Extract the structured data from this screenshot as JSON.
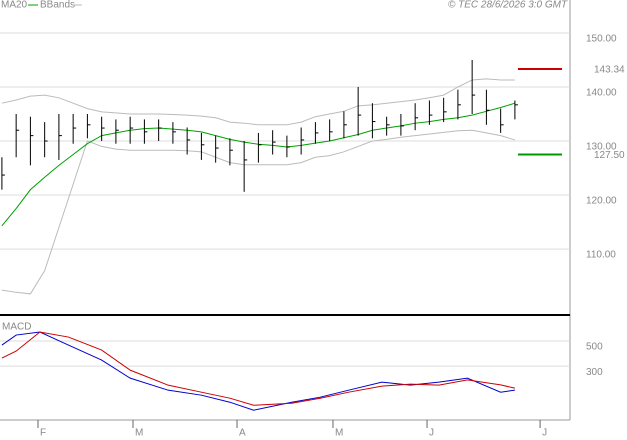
{
  "source": "© TEC 28/6/2026 3:0 GMT",
  "chart_data": [
    {
      "type": "ohlc",
      "x": [
        0,
        3,
        6,
        9,
        12,
        15,
        18,
        21,
        24,
        27,
        30,
        33,
        36,
        39,
        42,
        45,
        48,
        51,
        54,
        57,
        60,
        63,
        66,
        69,
        72,
        75,
        78,
        81,
        84,
        87,
        90,
        93,
        96,
        99,
        102,
        105,
        108
      ],
      "high": [
        127,
        135,
        134.5,
        133.5,
        135,
        135,
        135,
        134.5,
        134,
        134.5,
        134,
        134,
        133.5,
        132.5,
        131.5,
        131,
        130.5,
        130,
        131.5,
        132,
        131,
        132.5,
        133.5,
        134,
        135.5,
        140,
        137,
        134.5,
        135,
        137,
        137.5,
        138,
        139.5,
        145,
        139.5,
        136,
        137.5
      ],
      "low": [
        121,
        127,
        125.5,
        127,
        126.5,
        129.5,
        130.5,
        130,
        129.5,
        129.5,
        129.5,
        130,
        129.5,
        127.5,
        126.5,
        126,
        125.5,
        120.6,
        126,
        127.5,
        127,
        127.5,
        129.5,
        130,
        130.5,
        131,
        130.5,
        131,
        131,
        132,
        133,
        133.5,
        134,
        135,
        133,
        131.5,
        134
      ],
      "close": [
        123.7,
        132,
        131,
        130,
        131,
        132.4,
        133,
        132.4,
        132,
        132.4,
        131.7,
        132.4,
        131.7,
        130.2,
        129.3,
        128.7,
        128.3,
        126.5,
        129.3,
        129.8,
        128.9,
        130.2,
        131.5,
        131.7,
        133,
        134.8,
        133.6,
        133,
        132.8,
        134.3,
        134.8,
        135.4,
        136.7,
        138.5,
        135.7,
        133,
        136.7
      ],
      "bar_color": "#000000",
      "series": [
        {
          "name": "MA20",
          "color": "#00a000",
          "values": [
            114.3,
            117.5,
            121,
            123.3,
            125.5,
            127.5,
            129.5,
            131,
            131.5,
            132,
            132.3,
            132.4,
            132.2,
            132,
            131.7,
            131,
            130.3,
            129.8,
            129.4,
            129.2,
            128.9,
            129.2,
            129.6,
            130,
            130.6,
            131.2,
            132,
            132.4,
            132.8,
            133.3,
            133.6,
            134,
            134.3,
            134.8,
            135.5,
            136.2,
            137
          ]
        }
      ],
      "bands": {
        "name": "BBands",
        "color": "#bbbbbb",
        "upper": [
          137,
          137.6,
          138.3,
          138.5,
          138,
          137,
          136,
          135.4,
          135.2,
          135,
          135,
          135,
          134.9,
          134.8,
          134.6,
          134.3,
          133.5,
          133.3,
          133,
          133,
          133,
          133.5,
          134.5,
          135,
          135.5,
          136.5,
          136.7,
          137,
          137.3,
          137.6,
          138,
          138.5,
          140,
          141.3,
          141.5,
          141.3,
          141.3
        ],
        "lower": [
          102.4,
          102,
          101.7,
          106,
          114,
          122,
          130,
          129,
          128.5,
          128.3,
          128.3,
          128.3,
          128.3,
          128.2,
          128,
          127,
          126,
          125.6,
          125.6,
          125.6,
          125.6,
          126,
          127,
          127.3,
          128,
          129,
          130,
          130.3,
          130.7,
          131,
          131.3,
          131.6,
          131.9,
          132,
          131.5,
          131,
          130.2
        ]
      },
      "levels": {
        "values": [
          143.34,
          127.5
        ],
        "value_labels": [
          "143.34",
          "127.50"
        ],
        "colors": [
          "#cc0000",
          "#009900"
        ]
      },
      "xlim": [
        -0.4,
        119.6
      ],
      "ylim": [
        97.8,
        156.1
      ],
      "yticks": [
        {
          "value": 110,
          "label": "110.00"
        },
        {
          "value": 120,
          "label": "120.00"
        },
        {
          "value": 130,
          "label": "130.00"
        },
        {
          "value": 140,
          "label": "140.00"
        },
        {
          "value": 150,
          "label": "150.00"
        }
      ],
      "grid": true
    },
    {
      "type": "line",
      "title": "MACD",
      "x": [
        0,
        3,
        8,
        14,
        21,
        27,
        35,
        42,
        48,
        53,
        61,
        67,
        73,
        80,
        86,
        92,
        98,
        105,
        108
      ],
      "series": [
        {
          "color": "#0000cc",
          "values": [
            468,
            548,
            572,
            468,
            348,
            204,
            108,
            68,
            12,
            -52,
            12,
            52,
            108,
            172,
            148,
            172,
            204,
            92,
            108
          ]
        },
        {
          "color": "#cc0000",
          "values": [
            364,
            420,
            572,
            532,
            428,
            268,
            148,
            92,
            44,
            -12,
            4,
            44,
            92,
            140,
            156,
            148,
            190,
            150,
            124
          ]
        }
      ],
      "xlim": [
        -0.4,
        119.6
      ],
      "ylim": [
        -130,
        700
      ],
      "yticks": [
        300,
        500
      ],
      "xticks": [
        {
          "value": 7.6,
          "label": "F"
        },
        {
          "value": 27.6,
          "label": "M"
        },
        {
          "value": 49.5,
          "label": "A"
        },
        {
          "value": 69.7,
          "label": "M"
        },
        {
          "value": 89.5,
          "label": "J"
        },
        {
          "value": 113.3,
          "label": "J"
        }
      ],
      "grid": true
    }
  ]
}
